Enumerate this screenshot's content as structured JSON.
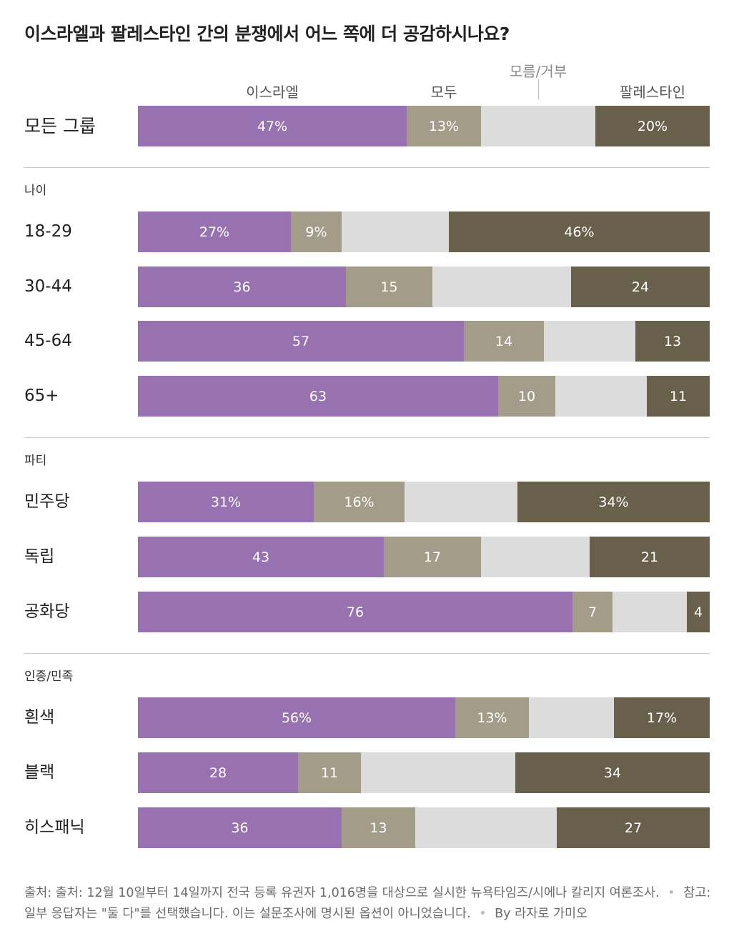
{
  "title": "이스라엘과 팔레스타인 간의 분쟁에서 어느 쪽에 더 공감하시나요?",
  "chart_data": {
    "type": "bar",
    "orientation": "horizontal",
    "stacked": true,
    "title": "이스라엘과 팔레스타인 간의 분쟁에서 어느 쪽에 더 공감하시나요?",
    "legend": [
      {
        "name": "이스라엘",
        "color": "#9771b0"
      },
      {
        "name": "모두",
        "color": "#a29c88"
      },
      {
        "name": "모름/거부",
        "color": "#dcdcdc"
      },
      {
        "name": "팔레스타인",
        "color": "#68604b"
      }
    ],
    "xlim": [
      0,
      100
    ],
    "groups": [
      {
        "label": "",
        "rows": [
          {
            "label": "모든 그룹",
            "israel": 47,
            "both": 13,
            "refuse": 20,
            "palestine": 20,
            "labels": [
              "47%",
              "13%",
              "",
              "20%"
            ]
          }
        ]
      },
      {
        "label": "나이",
        "rows": [
          {
            "label": "18-29",
            "israel": 27,
            "both": 9,
            "refuse": 19,
            "palestine": 46,
            "labels": [
              "27%",
              "9%",
              "",
              "46%"
            ]
          },
          {
            "label": "30-44",
            "israel": 36,
            "both": 15,
            "refuse": 24,
            "palestine": 24,
            "labels": [
              "36",
              "15",
              "",
              "24"
            ]
          },
          {
            "label": "45-64",
            "israel": 57,
            "both": 14,
            "refuse": 16,
            "palestine": 13,
            "labels": [
              "57",
              "14",
              "",
              "13"
            ]
          },
          {
            "label": "65+",
            "israel": 63,
            "both": 10,
            "refuse": 16,
            "palestine": 11,
            "labels": [
              "63",
              "10",
              "",
              "11"
            ]
          }
        ]
      },
      {
        "label": "파티",
        "rows": [
          {
            "label": "민주당",
            "israel": 31,
            "both": 16,
            "refuse": 20,
            "palestine": 34,
            "labels": [
              "31%",
              "16%",
              "",
              "34%"
            ]
          },
          {
            "label": "독립",
            "israel": 43,
            "both": 17,
            "refuse": 19,
            "palestine": 21,
            "labels": [
              "43",
              "17",
              "",
              "21"
            ]
          },
          {
            "label": "공화당",
            "israel": 76,
            "both": 7,
            "refuse": 13,
            "palestine": 4,
            "labels": [
              "76",
              "7",
              "",
              "4"
            ]
          }
        ]
      },
      {
        "label": "인종/민족",
        "rows": [
          {
            "label": "흰색",
            "israel": 56,
            "both": 13,
            "refuse": 15,
            "palestine": 17,
            "labels": [
              "56%",
              "13%",
              "",
              "17%"
            ]
          },
          {
            "label": "블랙",
            "israel": 28,
            "both": 11,
            "refuse": 27,
            "palestine": 34,
            "labels": [
              "28",
              "11",
              "",
              "34"
            ]
          },
          {
            "label": "히스패닉",
            "israel": 36,
            "both": 13,
            "refuse": 25,
            "palestine": 27,
            "labels": [
              "36",
              "13",
              "",
              "27"
            ]
          }
        ]
      }
    ]
  },
  "footer": {
    "source": "출처: 출처: 12월 10일부터 14일까지 전국 등록 유권자 1,016명을 대상으로 실시한 뉴욕타임즈/시에나 칼리지 여론조사.",
    "note": "참고: 일부 응답자는 \"둘 다\"를 선택했습니다. 이는 설문조사에 명시된 옵션이 아니었습니다.",
    "credit": "By 라자로 가미오",
    "separator": "•"
  }
}
